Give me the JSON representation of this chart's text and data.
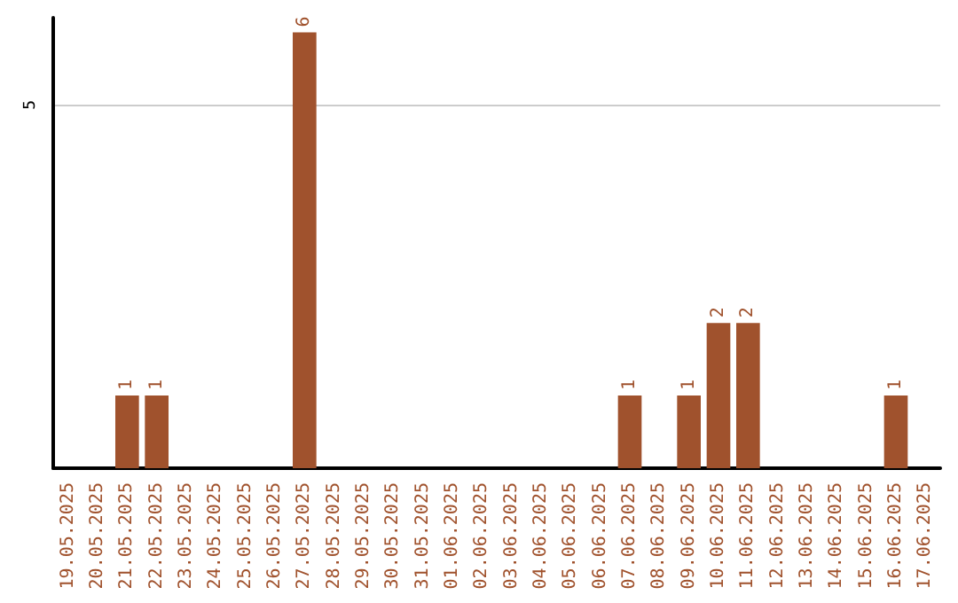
{
  "chart_data": {
    "type": "bar",
    "categories": [
      "19.05.2025",
      "20.05.2025",
      "21.05.2025",
      "22.05.2025",
      "23.05.2025",
      "24.05.2025",
      "25.05.2025",
      "26.05.2025",
      "27.05.2025",
      "28.05.2025",
      "29.05.2025",
      "30.05.2025",
      "31.05.2025",
      "01.06.2025",
      "02.06.2025",
      "03.06.2025",
      "04.06.2025",
      "05.06.2025",
      "06.06.2025",
      "07.06.2025",
      "08.06.2025",
      "09.06.2025",
      "10.06.2025",
      "11.06.2025",
      "12.06.2025",
      "13.06.2025",
      "14.06.2025",
      "15.06.2025",
      "16.06.2025",
      "17.06.2025"
    ],
    "values": [
      0,
      0,
      1,
      1,
      0,
      0,
      0,
      0,
      6,
      0,
      0,
      0,
      0,
      0,
      0,
      0,
      0,
      0,
      0,
      1,
      0,
      1,
      2,
      2,
      0,
      0,
      0,
      0,
      1,
      0
    ],
    "value_labels": [
      null,
      null,
      "1",
      "1",
      null,
      null,
      null,
      null,
      "6",
      null,
      null,
      null,
      null,
      null,
      null,
      null,
      null,
      null,
      null,
      "1",
      null,
      "1",
      "2",
      "2",
      null,
      null,
      null,
      null,
      "1",
      null
    ],
    "color": "#a0522d",
    "ylim": [
      0,
      6.2
    ],
    "yticks": [
      5
    ],
    "grid": "y"
  }
}
